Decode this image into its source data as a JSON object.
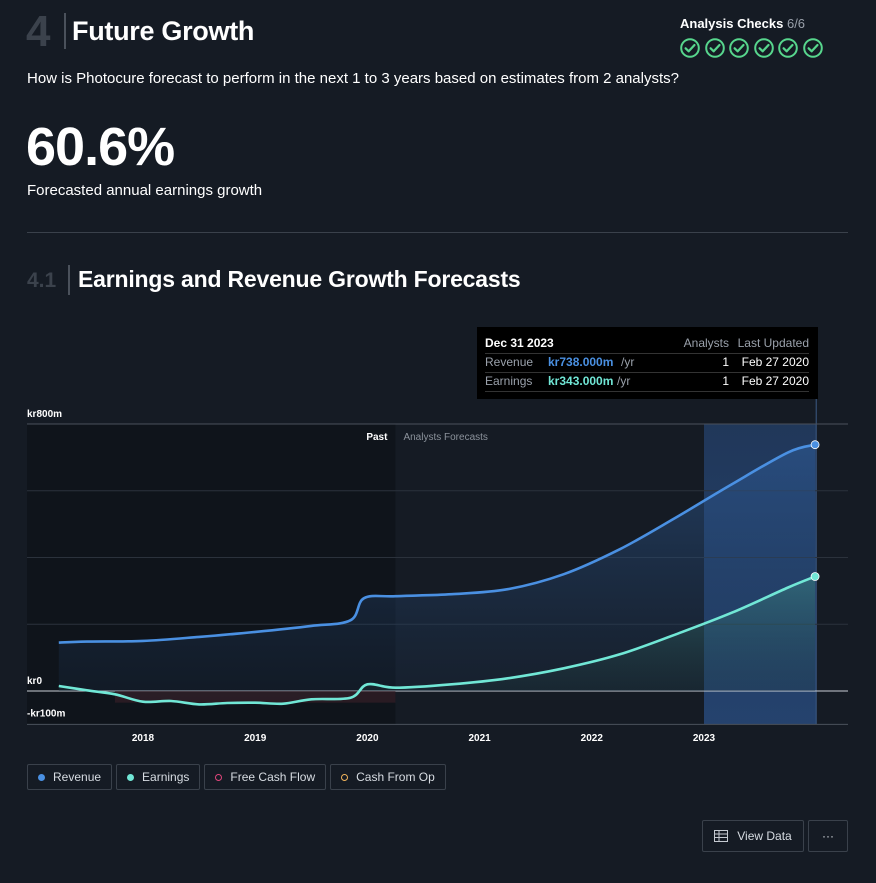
{
  "section": {
    "number": "4",
    "title": "Future Growth"
  },
  "analysis_checks": {
    "label": "Analysis Checks",
    "count": "6/6",
    "passed": 6,
    "color": "#57d68d"
  },
  "question": "How is Photocure forecast to perform in the next 1 to 3 years based on estimates from 2 analysts?",
  "headline": {
    "value": "60.6%",
    "caption": "Forecasted annual earnings growth"
  },
  "subsection": {
    "number": "4.1",
    "title": "Earnings and Revenue Growth Forecasts"
  },
  "tooltip": {
    "date": "Dec 31 2023",
    "col_analysts": "Analysts",
    "col_updated": "Last Updated",
    "rows": [
      {
        "label": "Revenue",
        "value": "kr738.000m",
        "unit": "/yr",
        "analysts": "1",
        "updated": "Feb 27 2020",
        "color": "#4a90e2"
      },
      {
        "label": "Earnings",
        "value": "kr343.000m",
        "unit": "/yr",
        "analysts": "1",
        "updated": "Feb 27 2020",
        "color": "#71e7d6"
      }
    ]
  },
  "chart_data": {
    "type": "area",
    "y_tick_labels": [
      "kr800m",
      "kr0",
      "-kr100m"
    ],
    "ylim": [
      -100,
      800
    ],
    "x_tick_labels": [
      "2018",
      "2019",
      "2020",
      "2021",
      "2022",
      "2023"
    ],
    "xlim": [
      2017.1,
      2024.3
    ],
    "regions": {
      "past_label": "Past",
      "forecast_label": "Analysts Forecasts",
      "past_end": 2020.25
    },
    "series": [
      {
        "name": "Revenue",
        "color": "#4a90e2",
        "x": [
          2017.25,
          2017.5,
          2018.0,
          2018.5,
          2019.0,
          2019.5,
          2019.85,
          2019.97,
          2020.25,
          2020.75,
          2021.25,
          2021.75,
          2022.25,
          2022.75,
          2023.25,
          2023.75,
          2023.99
        ],
        "y": [
          145,
          148,
          150,
          162,
          177,
          195,
          212,
          278,
          284,
          290,
          305,
          350,
          425,
          520,
          620,
          715,
          738
        ]
      },
      {
        "name": "Earnings",
        "color": "#71e7d6",
        "x": [
          2017.25,
          2017.5,
          2017.75,
          2018.0,
          2018.25,
          2018.5,
          2018.75,
          2019.0,
          2019.25,
          2019.5,
          2019.85,
          2020.0,
          2020.25,
          2020.75,
          2021.25,
          2021.75,
          2022.25,
          2022.75,
          2023.25,
          2023.75,
          2023.99
        ],
        "y": [
          15,
          2,
          -10,
          -32,
          -30,
          -40,
          -36,
          -35,
          -38,
          -25,
          -20,
          20,
          10,
          20,
          38,
          68,
          110,
          170,
          235,
          310,
          343
        ]
      }
    ],
    "legend": [
      {
        "name": "Revenue",
        "color": "#4a90e2",
        "filled": true
      },
      {
        "name": "Earnings",
        "color": "#71e7d6",
        "filled": true
      },
      {
        "name": "Free Cash Flow",
        "color": "#e0457b",
        "filled": false
      },
      {
        "name": "Cash From Op",
        "color": "#f0b35b",
        "filled": false
      }
    ]
  },
  "buttons": {
    "view_data": "View Data",
    "more": "···"
  }
}
